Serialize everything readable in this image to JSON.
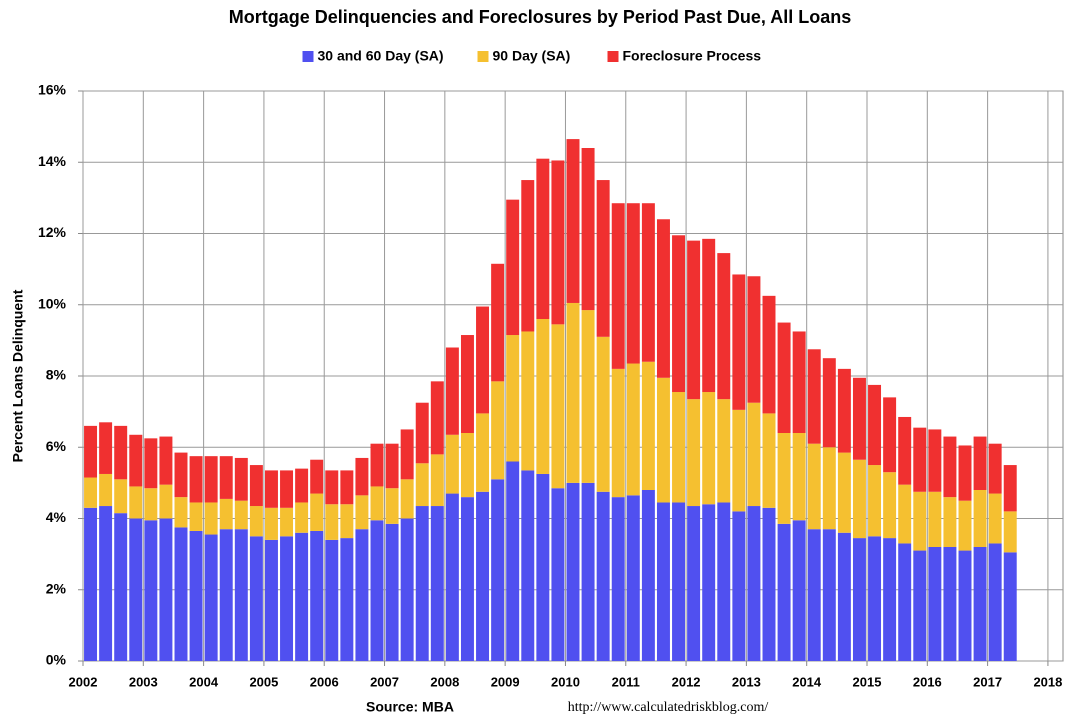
{
  "chart_data": {
    "type": "stacked-bar",
    "title": "Mortgage Delinquencies and Foreclosures by Period Past Due, All Loans",
    "y_label": "Percent Loans Delinquent",
    "source": "Source: MBA",
    "url": "http://www.calculatedriskblog.com/",
    "categories": [
      "2002",
      null,
      null,
      null,
      "2003",
      null,
      null,
      null,
      "2004",
      null,
      null,
      null,
      "2005",
      null,
      null,
      null,
      "2006",
      null,
      null,
      null,
      "2007",
      null,
      null,
      null,
      "2008",
      null,
      null,
      null,
      "2009",
      null,
      null,
      null,
      "2010",
      null,
      null,
      null,
      "2011",
      null,
      null,
      null,
      "2012",
      null,
      null,
      null,
      "2013",
      null,
      null,
      null,
      "2014",
      null,
      null,
      null,
      "2015",
      null,
      null,
      null,
      "2016",
      null,
      null,
      null,
      "2017",
      null,
      null,
      null,
      "2018"
    ],
    "series": [
      {
        "name": "30 and 60 Day (SA)",
        "color": "#5050f0",
        "values": [
          4.3,
          4.35,
          4.15,
          4.0,
          3.95,
          4.0,
          3.75,
          3.65,
          3.55,
          3.7,
          3.7,
          3.5,
          3.4,
          3.5,
          3.6,
          3.65,
          3.4,
          3.45,
          3.7,
          3.95,
          3.85,
          4.0,
          4.35,
          4.35,
          4.7,
          4.6,
          4.75,
          5.1,
          5.6,
          5.35,
          5.25,
          4.85,
          5.0,
          5.0,
          4.75,
          4.6,
          4.65,
          4.8,
          4.45,
          4.45,
          4.35,
          4.4,
          4.45,
          4.2,
          4.35,
          4.3,
          3.85,
          3.95,
          3.7,
          3.7,
          3.6,
          3.45,
          3.5,
          3.45,
          3.3,
          3.1,
          3.2,
          3.2,
          3.1,
          3.2,
          3.3,
          3.05,
          null,
          null,
          null
        ]
      },
      {
        "name": "90 Day (SA)",
        "color": "#f5c030",
        "values": [
          0.85,
          0.9,
          0.95,
          0.9,
          0.9,
          0.95,
          0.85,
          0.8,
          0.9,
          0.85,
          0.8,
          0.85,
          0.9,
          0.8,
          0.85,
          1.05,
          1.0,
          0.95,
          0.95,
          0.95,
          1.0,
          1.1,
          1.2,
          1.45,
          1.65,
          1.8,
          2.2,
          2.75,
          3.55,
          3.9,
          4.35,
          4.6,
          5.05,
          4.85,
          4.35,
          3.6,
          3.7,
          3.6,
          3.5,
          3.1,
          3.0,
          3.15,
          2.9,
          2.85,
          2.9,
          2.65,
          2.55,
          2.45,
          2.4,
          2.3,
          2.25,
          2.2,
          2.0,
          1.85,
          1.65,
          1.65,
          1.55,
          1.4,
          1.4,
          1.6,
          1.4,
          1.15,
          null,
          null,
          null
        ]
      },
      {
        "name": "Foreclosure Process",
        "color": "#f03030",
        "values": [
          1.45,
          1.45,
          1.5,
          1.45,
          1.4,
          1.35,
          1.25,
          1.3,
          1.3,
          1.2,
          1.2,
          1.15,
          1.05,
          1.05,
          0.95,
          0.95,
          0.95,
          0.95,
          1.05,
          1.2,
          1.25,
          1.4,
          1.7,
          2.05,
          2.45,
          2.75,
          3.0,
          3.3,
          3.8,
          4.25,
          4.5,
          4.6,
          4.6,
          4.55,
          4.4,
          4.65,
          4.5,
          4.45,
          4.45,
          4.4,
          4.45,
          4.3,
          4.1,
          3.8,
          3.55,
          3.3,
          3.1,
          2.85,
          2.65,
          2.5,
          2.35,
          2.3,
          2.25,
          2.1,
          1.9,
          1.8,
          1.75,
          1.7,
          1.55,
          1.5,
          1.4,
          1.3,
          null,
          null,
          null
        ]
      }
    ],
    "ylim": [
      0,
      16
    ],
    "yticks": [
      {
        "value": 0,
        "label": "0%"
      },
      {
        "value": 2,
        "label": "2%"
      },
      {
        "value": 4,
        "label": "4%"
      },
      {
        "value": 6,
        "label": "6%"
      },
      {
        "value": 8,
        "label": "8%"
      },
      {
        "value": 10,
        "label": "10%"
      },
      {
        "value": 12,
        "label": "12%"
      },
      {
        "value": 14,
        "label": "14%"
      },
      {
        "value": 16,
        "label": "16%"
      }
    ],
    "grid": true,
    "legend": "top"
  }
}
